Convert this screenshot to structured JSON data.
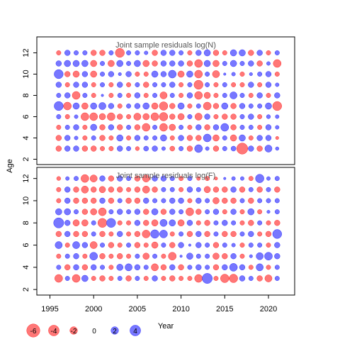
{
  "chart_data": {
    "type": "scatter",
    "subtype": "bubble",
    "ylabel": "Age",
    "xlabel": "Year",
    "xlim": [
      1993.5,
      2023.0
    ],
    "xticks": [
      1995,
      2000,
      2005,
      2010,
      2015,
      2020
    ],
    "ages": [
      3,
      4,
      5,
      6,
      7,
      8,
      9,
      10,
      11,
      12
    ],
    "years": [
      1996,
      1997,
      1998,
      1999,
      2000,
      2001,
      2002,
      2003,
      2004,
      2005,
      2006,
      2007,
      2008,
      2009,
      2010,
      2011,
      2012,
      2013,
      2014,
      2015,
      2016,
      2017,
      2018,
      2019,
      2020,
      2021
    ],
    "positive_color": "#7777ff",
    "negative_color": "#ff7777",
    "grid": false,
    "legend": {
      "position": "bottom",
      "values": [
        -6,
        -4,
        -2,
        0,
        2,
        4
      ],
      "labels": [
        "-6",
        "-4",
        "-2",
        "0",
        "2",
        "4"
      ]
    },
    "panels": [
      {
        "title": "Joint sample residuals log(N)",
        "ylim": [
          1.5,
          13.5
        ],
        "yticks": [
          2,
          4,
          6,
          8,
          10,
          12
        ],
        "residuals": [
          [
            -1.5,
            1.5,
            1.5,
            -1.5,
            -1.5,
            -1.0,
            -1.0,
            1.5,
            1.0,
            -0.8,
            1.2,
            1.5,
            0.7,
            -1.2,
            1.0,
            -1.5,
            3.0,
            0.7,
            -1.5,
            1.0,
            1.2,
            -6.0,
            1.5,
            -1.5,
            2.5,
            0.6
          ],
          [
            -1.5,
            1.5,
            0.7,
            -1.0,
            1.0,
            -1.5,
            -1.0,
            2.0,
            -1.0,
            1.5,
            1.0,
            1.0,
            2.0,
            -1.0,
            1.5,
            -1.5,
            -1.5,
            3.0,
            -2.0,
            1.0,
            -2.0,
            2.0,
            -1.0,
            1.5,
            1.5,
            -0.5
          ],
          [
            -1.0,
            1.0,
            1.5,
            -1.0,
            2.0,
            -1.5,
            1.5,
            -1.5,
            1.0,
            -1.5,
            -3.0,
            1.0,
            -3.0,
            -2.0,
            1.0,
            -1.0,
            1.5,
            -1.5,
            1.5,
            3.0,
            -1.5,
            1.0,
            1.0,
            -1.0,
            1.5,
            0.7
          ],
          [
            1.0,
            -1.0,
            0.7,
            -3.0,
            -3.0,
            -2.0,
            -3.0,
            -1.5,
            -1.0,
            -2.5,
            -2.0,
            -3.0,
            -3.5,
            -1.5,
            -2.0,
            1.0,
            -2.5,
            1.5,
            -1.0,
            -1.5,
            -1.5,
            1.0,
            1.5,
            -1.0,
            0.8,
            0.7
          ],
          [
            4.0,
            -3.0,
            2.0,
            -2.0,
            2.0,
            2.5,
            1.5,
            -1.0,
            1.0,
            1.5,
            2.0,
            -2.0,
            -3.5,
            -1.5,
            2.0,
            -1.0,
            1.0,
            -3.0,
            -1.5,
            2.0,
            -1.5,
            1.5,
            1.0,
            1.0,
            2.0,
            -4.0
          ],
          [
            1.0,
            1.5,
            -3.0,
            1.0,
            -1.0,
            0.3,
            -1.0,
            1.0,
            -1.0,
            1.5,
            -1.0,
            1.0,
            -2.5,
            1.0,
            -1.0,
            1.5,
            -3.0,
            -2.0,
            -1.0,
            1.0,
            2.5,
            1.0,
            -1.0,
            1.5,
            -1.0,
            1.5
          ],
          [
            1.5,
            -1.0,
            1.5,
            1.5,
            -1.0,
            1.0,
            -1.0,
            1.5,
            -1.0,
            1.0,
            -1.5,
            1.0,
            1.0,
            1.5,
            -1.0,
            1.0,
            -4.0,
            1.0,
            -1.0,
            1.0,
            -1.0,
            -1.0,
            1.5,
            -1.0,
            1.5,
            0.7
          ],
          [
            4.0,
            -1.5,
            -2.0,
            1.5,
            -2.0,
            1.0,
            1.5,
            0.5,
            1.5,
            -1.0,
            -1.0,
            2.0,
            1.5,
            3.0,
            -2.0,
            2.0,
            -3.0,
            1.0,
            -2.5,
            0.3,
            0.7,
            -1.0,
            0.5,
            1.0,
            1.5,
            -1.0
          ],
          [
            1.5,
            2.0,
            2.0,
            2.0,
            -2.0,
            1.0,
            -2.0,
            2.0,
            1.0,
            2.0,
            -2.0,
            -1.5,
            1.5,
            1.5,
            1.5,
            -1.5,
            -3.0,
            2.0,
            -2.0,
            1.0,
            2.0,
            1.0,
            1.5,
            -1.5,
            0.7,
            -3.0
          ],
          [
            -1.0,
            1.5,
            1.0,
            1.0,
            -1.5,
            -1.5,
            1.0,
            -4.0,
            1.0,
            1.0,
            0.7,
            -1.5,
            1.5,
            1.5,
            1.0,
            -1.0,
            1.5,
            2.0,
            -1.5,
            -1.0,
            2.0,
            2.0,
            -1.5,
            1.5,
            -1.0,
            1.0
          ]
        ]
      },
      {
        "title": "Joint sample residuals log(F)",
        "ylim": [
          1.5,
          13.0
        ],
        "yticks": [
          2,
          4,
          6,
          8,
          10,
          12
        ],
        "residuals": [
          [
            -3.0,
            1.0,
            -3.0,
            2.0,
            -1.0,
            -1.5,
            -1.0,
            1.0,
            -1.5,
            1.0,
            -1.0,
            1.5,
            -1.0,
            -1.5,
            -1.0,
            -1.0,
            -3.0,
            5.0,
            -1.0,
            -3.5,
            -3.5,
            1.5,
            1.0,
            -1.5,
            -2.5,
            1.0
          ],
          [
            1.0,
            -1.5,
            1.5,
            -1.5,
            1.5,
            1.0,
            -1.0,
            2.0,
            2.5,
            1.5,
            1.0,
            -2.5,
            -1.5,
            1.5,
            -1.5,
            1.0,
            1.5,
            1.0,
            -1.5,
            1.5,
            3.0,
            1.5,
            -1.0,
            2.5,
            -1.0,
            1.0
          ],
          [
            -1.0,
            1.0,
            1.5,
            -1.0,
            3.0,
            -1.5,
            -1.0,
            -1.5,
            -1.0,
            1.0,
            -2.0,
            1.0,
            -1.0,
            -3.0,
            0.3,
            2.0,
            1.0,
            1.0,
            -2.0,
            -1.5,
            1.5,
            -1.0,
            0.5,
            2.5,
            3.0,
            1.5
          ],
          [
            2.5,
            -1.0,
            2.5,
            1.5,
            -2.5,
            1.0,
            -1.5,
            -1.0,
            1.0,
            -1.5,
            -1.0,
            -2.0,
            1.0,
            -1.5,
            1.5,
            0.3,
            1.5,
            1.0,
            -1.5,
            1.0,
            0.7,
            -1.0,
            1.0,
            1.0,
            -1.0,
            1.5
          ],
          [
            -1.5,
            1.5,
            -1.5,
            -1.5,
            1.0,
            -1.5,
            -1.0,
            1.5,
            -1.0,
            -1.5,
            -3.0,
            3.5,
            3.0,
            -1.0,
            1.0,
            -1.5,
            1.5,
            -1.5,
            1.0,
            -1.5,
            -1.5,
            1.0,
            1.5,
            -1.0,
            -1.5,
            4.0
          ],
          [
            5.0,
            1.5,
            -2.0,
            -2.0,
            1.0,
            -4.0,
            4.0,
            -1.0,
            -1.0,
            1.5,
            -1.5,
            -2.0,
            2.5,
            2.0,
            -2.0,
            1.5,
            -1.0,
            -1.5,
            1.0,
            1.5,
            1.0,
            -1.0,
            -1.5,
            1.0,
            -1.0,
            -1.5
          ],
          [
            2.0,
            2.0,
            1.0,
            -1.5,
            -2.0,
            -3.0,
            1.0,
            1.5,
            1.0,
            1.5,
            -1.5,
            2.0,
            -1.5,
            1.5,
            1.0,
            -3.0,
            -1.5,
            1.0,
            1.5,
            -1.0,
            1.5,
            -1.0,
            2.0,
            -1.0,
            0.5,
            1.0
          ],
          [
            -1.0,
            1.5,
            -1.5,
            -1.5,
            -1.5,
            1.5,
            -1.5,
            1.0,
            -1.5,
            -1.5,
            1.5,
            1.0,
            1.0,
            1.5,
            1.5,
            -1.0,
            1.5,
            1.0,
            -2.0,
            -1.5,
            -1.5,
            1.0,
            -1.5,
            1.0,
            1.0,
            1.0
          ],
          [
            -1.0,
            1.5,
            -1.5,
            -2.5,
            -1.5,
            -2.0,
            -1.5,
            -1.5,
            -1.0,
            -1.5,
            -2.5,
            -1.5,
            1.0,
            1.0,
            -1.0,
            1.5,
            1.0,
            -2.0,
            -1.5,
            -1.5,
            1.5,
            -1.5,
            1.0,
            -1.5,
            1.0,
            -1.5
          ],
          [
            -0.8,
            0.7,
            1.0,
            -3.0,
            -2.5,
            1.5,
            -1.5,
            1.5,
            1.0,
            -1.5,
            -2.5,
            1.5,
            1.5,
            1.0,
            -1.0,
            1.0,
            -0.7,
            -1.0,
            -0.5,
            0.3,
            0.7,
            0.7,
            -1.0,
            3.5,
            0.7,
            1.0
          ]
        ]
      }
    ]
  }
}
